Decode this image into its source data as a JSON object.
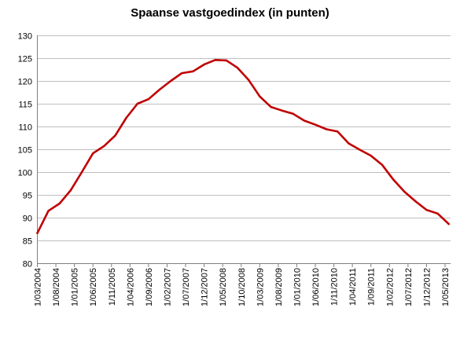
{
  "chart_data": {
    "type": "line",
    "title": "Spaanse vastgoedindex (in punten)",
    "xlabel": "",
    "ylabel": "",
    "ylim": [
      80,
      130
    ],
    "yticks": [
      80,
      85,
      90,
      95,
      100,
      105,
      110,
      115,
      120,
      125,
      130
    ],
    "grid": "horizontal",
    "legend": "none",
    "colors": {
      "line": "#C00000",
      "grid": "#BFBFBF",
      "axis": "#808080",
      "text": "#000000"
    },
    "x_tick_labels": [
      "1/03/2004",
      "1/08/2004",
      "1/01/2005",
      "1/06/2005",
      "1/11/2005",
      "1/04/2006",
      "1/09/2006",
      "1/02/2007",
      "1/07/2007",
      "1/12/2007",
      "1/05/2008",
      "1/10/2008",
      "1/03/2009",
      "1/08/2009",
      "1/01/2010",
      "1/06/2010",
      "1/11/2010",
      "1/04/2011",
      "1/09/2011",
      "1/02/2012",
      "1/07/2012",
      "1/12/2012",
      "1/05/2013"
    ],
    "series": [
      {
        "x": [
          "2004-03",
          "2004-06",
          "2004-09",
          "2004-12",
          "2005-03",
          "2005-06",
          "2005-09",
          "2005-12",
          "2006-03",
          "2006-06",
          "2006-09",
          "2006-12",
          "2007-03",
          "2007-06",
          "2007-09",
          "2007-12",
          "2008-03",
          "2008-06",
          "2008-09",
          "2008-12",
          "2009-03",
          "2009-06",
          "2009-09",
          "2009-12",
          "2010-03",
          "2010-06",
          "2010-09",
          "2010-12",
          "2011-03",
          "2011-06",
          "2011-09",
          "2011-12",
          "2012-03",
          "2012-06",
          "2012-09",
          "2012-12",
          "2013-03",
          "2013-06"
        ],
        "values": [
          86.6,
          91.5,
          93.1,
          96.0,
          100.0,
          104.1,
          105.7,
          108.0,
          111.9,
          115.0,
          116.0,
          118.1,
          120.0,
          121.7,
          122.1,
          123.6,
          124.6,
          124.5,
          122.9,
          120.2,
          116.6,
          114.3,
          113.5,
          112.8,
          111.3,
          110.4,
          109.4,
          108.9,
          106.3,
          104.9,
          103.6,
          101.6,
          98.4,
          95.7,
          93.6,
          91.7,
          90.9,
          88.6
        ]
      }
    ]
  }
}
